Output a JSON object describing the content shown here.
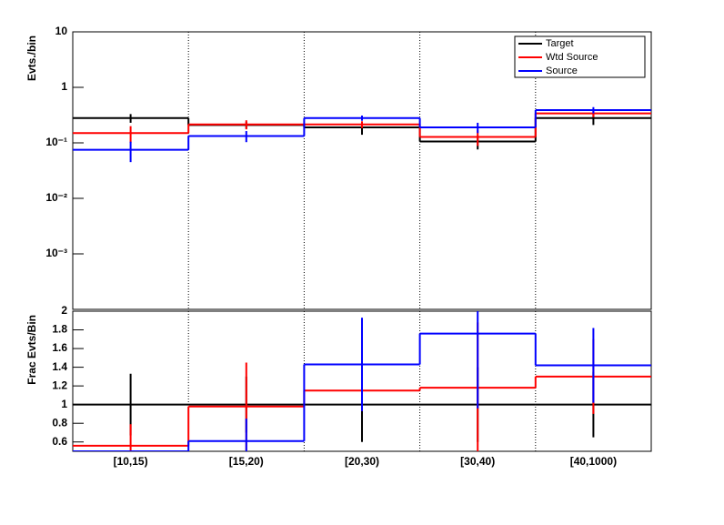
{
  "chart_data": [
    {
      "type": "step",
      "y_label": "Evts./bin",
      "log_y": true,
      "ylim": [
        0.0001,
        10
      ],
      "yticks": [
        10,
        1,
        {
          "value": 0.1,
          "label": "10⁻¹"
        },
        {
          "value": 0.01,
          "label": "10⁻²"
        },
        {
          "value": 0.001,
          "label": "10⁻³"
        }
      ],
      "legend": "top-right",
      "series": [
        {
          "name": "Target",
          "color": "#000000",
          "values": [
            0.28,
            0.21,
            0.19,
            0.106,
            0.28
          ],
          "errors": [
            0.05,
            0.03,
            0.05,
            0.03,
            0.07
          ]
        },
        {
          "name": "Wtd Source",
          "color": "#ff0000",
          "values": [
            0.15,
            0.215,
            0.215,
            0.128,
            0.34
          ],
          "errors": [
            0.05,
            0.04,
            0.03,
            0.04,
            0.05
          ]
        },
        {
          "name": "Source",
          "color": "#0000ff",
          "values": [
            0.075,
            0.133,
            0.28,
            0.19,
            0.39
          ],
          "errors": [
            0.03,
            0.03,
            0.03,
            0.04,
            0.05
          ]
        }
      ]
    },
    {
      "type": "step",
      "y_label": "Frac Evts/Bin",
      "categories": [
        "[10,15)",
        "[15,20)",
        "[20,30)",
        "[30,40)",
        "[40,1000)"
      ],
      "ylim": [
        0.5,
        2
      ],
      "yticks": [
        0.6,
        0.8,
        1,
        1.2,
        1.4,
        1.6,
        1.8,
        2
      ],
      "series": [
        {
          "name": "Target",
          "color": "#000000",
          "values": [
            1,
            1,
            1,
            1,
            1
          ],
          "errors": [
            0.33,
            0.3,
            0.4,
            0.4,
            0.35
          ]
        },
        {
          "name": "Wtd Source",
          "color": "#ff0000",
          "values": [
            0.56,
            0.98,
            1.15,
            1.18,
            1.3
          ],
          "errors": [
            0.23,
            0.47,
            0.22,
            0.7,
            0.4
          ]
        },
        {
          "name": "Source",
          "color": "#0000ff",
          "values": [
            0.5,
            0.61,
            1.43,
            1.76,
            1.42
          ],
          "errors": [
            0.0,
            0.24,
            0.5,
            0.8,
            0.4
          ]
        }
      ]
    }
  ]
}
